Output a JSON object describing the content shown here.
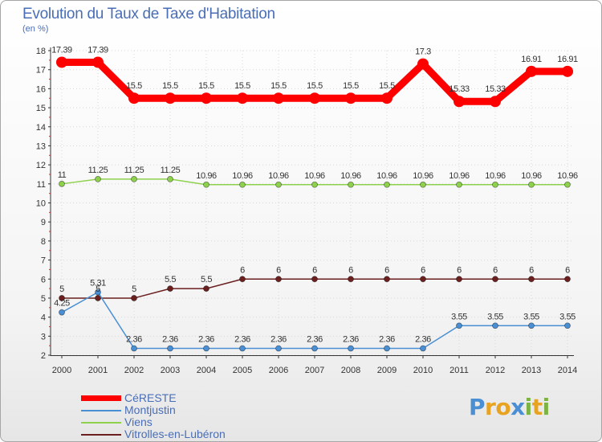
{
  "title": "Evolution du Taux de Taxe d'Habitation",
  "unit": "(en %)",
  "logo": {
    "text": "Proxiti",
    "colors": [
      "#4a8fd4",
      "#e8a321",
      "#e8a321",
      "#4a8fd4",
      "#7cb342",
      "#e8a321",
      "#7cb342"
    ]
  },
  "chart_data": {
    "type": "line",
    "title": "Evolution du Taux de Taxe d'Habitation",
    "ylabel": "(en %)",
    "xlabel": "",
    "categories": [
      "2000",
      "2001",
      "2002",
      "2003",
      "2004",
      "2005",
      "2006",
      "2007",
      "2008",
      "2009",
      "2010",
      "2011",
      "2012",
      "2013",
      "2014"
    ],
    "ylim": [
      2,
      18
    ],
    "yticks": [
      "2",
      "3",
      "4",
      "5",
      "6",
      "7",
      "8",
      "9",
      "10",
      "11",
      "12",
      "13",
      "14",
      "15",
      "16",
      "17",
      "18"
    ],
    "series": [
      {
        "name": "CéRESTE",
        "color": "#ff0000",
        "values": [
          17.39,
          17.39,
          15.5,
          15.5,
          15.5,
          15.5,
          15.5,
          15.5,
          15.5,
          15.5,
          17.3,
          15.33,
          15.33,
          16.91,
          16.91
        ],
        "labels": [
          "17.39",
          "17.39",
          "15.5",
          "15.5",
          "15.5",
          "15.5",
          "15.5",
          "15.5",
          "15.5",
          "15.5",
          "17.3",
          "15.33",
          "15.33",
          "16.91",
          "16.91"
        ]
      },
      {
        "name": "Montjustin",
        "color": "#4a8fd4",
        "values": [
          4.25,
          5.31,
          2.36,
          2.36,
          2.36,
          2.36,
          2.36,
          2.36,
          2.36,
          2.36,
          2.36,
          3.55,
          3.55,
          3.55,
          3.55
        ],
        "labels": [
          "4.25",
          "5.31",
          "2.36",
          "2.36",
          "2.36",
          "2.36",
          "2.36",
          "2.36",
          "2.36",
          "2.36",
          "2.36",
          "3.55",
          "3.55",
          "3.55",
          "3.55"
        ]
      },
      {
        "name": "Viens",
        "color": "#8ed14d",
        "values": [
          11,
          11.25,
          11.25,
          11.25,
          10.96,
          10.96,
          10.96,
          10.96,
          10.96,
          10.96,
          10.96,
          10.96,
          10.96,
          10.96,
          10.96
        ],
        "labels": [
          "11",
          "11.25",
          "11.25",
          "11.25",
          "10.96",
          "10.96",
          "10.96",
          "10.96",
          "10.96",
          "10.96",
          "10.96",
          "10.96",
          "10.96",
          "10.96",
          "10.96"
        ]
      },
      {
        "name": "Vitrolles-en-Lubéron",
        "color": "#6b1f1f",
        "values": [
          5,
          5,
          5,
          5.5,
          5.5,
          6,
          6,
          6,
          6,
          6,
          6,
          6,
          6,
          6,
          6
        ],
        "labels": [
          "5",
          "5",
          "5",
          "5.5",
          "5.5",
          "6",
          "6",
          "6",
          "6",
          "6",
          "6",
          "6",
          "6",
          "6",
          "6"
        ]
      }
    ],
    "legend_position": "bottom-left"
  }
}
